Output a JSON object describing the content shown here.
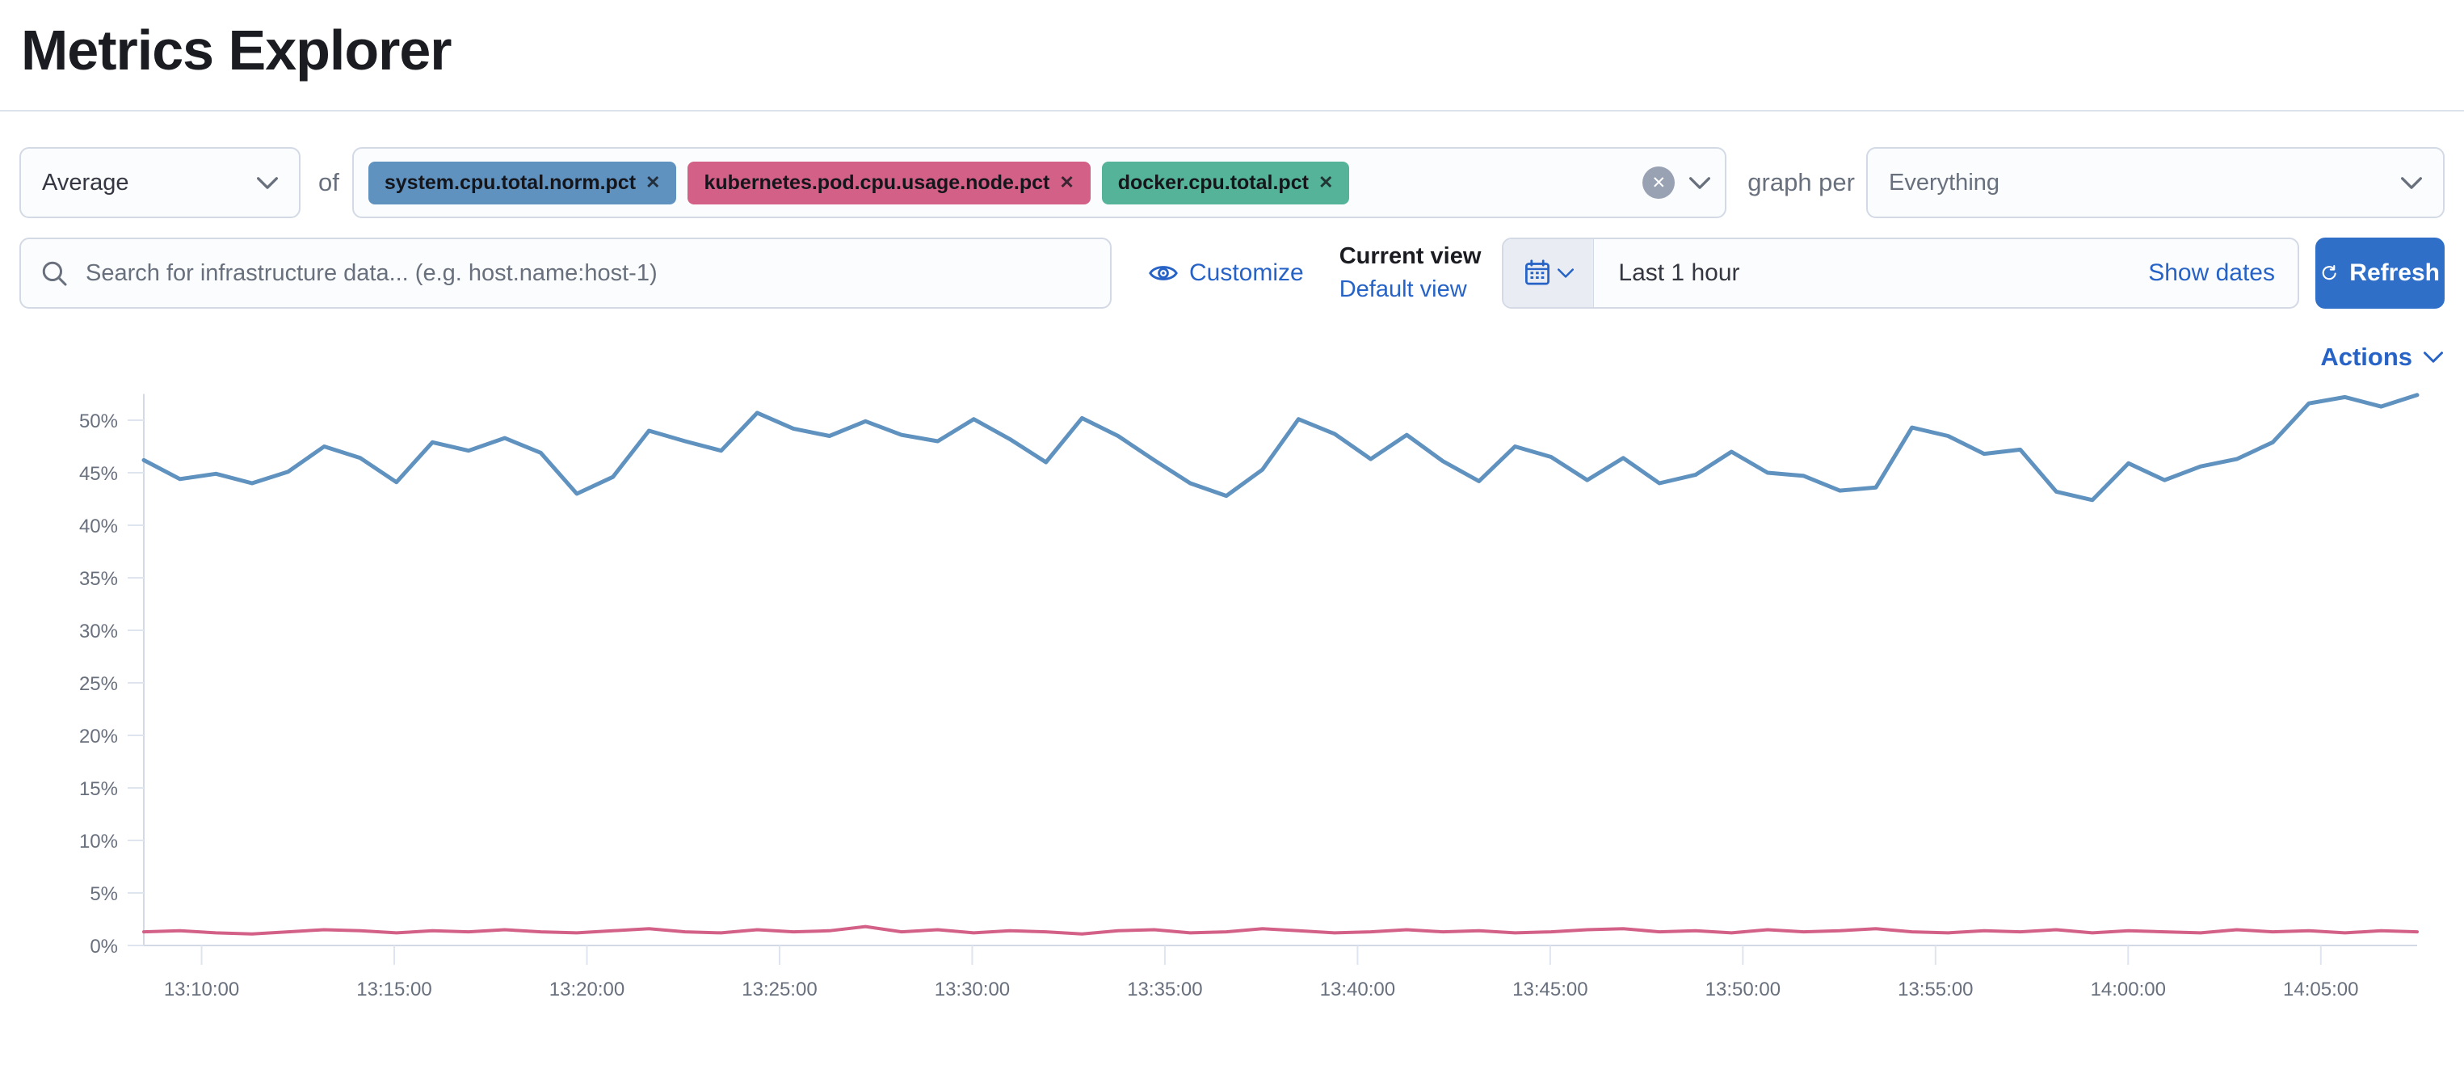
{
  "page": {
    "title": "Metrics Explorer"
  },
  "toolbar": {
    "aggregation": {
      "value": "Average"
    },
    "of_label": "of",
    "metrics": [
      {
        "label": "system.cpu.total.norm.pct",
        "color": "#6092C0"
      },
      {
        "label": "kubernetes.pod.cpu.usage.node.pct",
        "color": "#D36086"
      },
      {
        "label": "docker.cpu.total.pct",
        "color": "#54B399"
      }
    ],
    "clear_icon": "✕",
    "graph_per_label": "graph per",
    "group_by": {
      "value": "Everything"
    }
  },
  "search": {
    "placeholder": "Search for infrastructure data... (e.g. host.name:host-1)"
  },
  "view_controls": {
    "customize_label": "Customize",
    "current_view_label": "Current view",
    "view_name": "Default view"
  },
  "time_picker": {
    "range_label": "Last 1 hour",
    "show_dates_label": "Show dates",
    "refresh_label": "Refresh"
  },
  "actions_label": "Actions",
  "ui_colors": {
    "link_blue": "#2763c6",
    "primary_button_blue": "#306fc8",
    "border_grey": "#d3dae6",
    "muted_text_grey": "#69707d"
  },
  "chart_data": {
    "type": "line",
    "title": "",
    "xlabel": "",
    "ylabel": "",
    "grid": "off",
    "legend": "none",
    "ylim": [
      0,
      52.5
    ],
    "y_ticks": [
      0,
      5,
      10,
      15,
      20,
      25,
      30,
      35,
      40,
      45,
      50
    ],
    "y_tick_suffix": "%",
    "x_domain_minutes": [
      788.5,
      847.5
    ],
    "x_ticks": [
      {
        "minute": 790,
        "label": "13:10:00"
      },
      {
        "minute": 795,
        "label": "13:15:00"
      },
      {
        "minute": 800,
        "label": "13:20:00"
      },
      {
        "minute": 805,
        "label": "13:25:00"
      },
      {
        "minute": 810,
        "label": "13:30:00"
      },
      {
        "minute": 815,
        "label": "13:35:00"
      },
      {
        "minute": 820,
        "label": "13:40:00"
      },
      {
        "minute": 825,
        "label": "13:45:00"
      },
      {
        "minute": 830,
        "label": "13:50:00"
      },
      {
        "minute": 835,
        "label": "13:55:00"
      },
      {
        "minute": 840,
        "label": "14:00:00"
      },
      {
        "minute": 845,
        "label": "14:05:00"
      }
    ],
    "series": [
      {
        "name": "system.cpu.total.norm.pct",
        "color": "#6092C0",
        "values": [
          46.2,
          44.4,
          44.9,
          44.0,
          45.1,
          47.5,
          46.4,
          44.1,
          47.9,
          47.1,
          48.3,
          46.9,
          43.0,
          44.6,
          49.0,
          48.0,
          47.1,
          50.7,
          49.2,
          48.5,
          49.9,
          48.6,
          48.0,
          50.1,
          48.2,
          46.0,
          50.2,
          48.5,
          46.2,
          44.0,
          42.8,
          45.3,
          50.1,
          48.7,
          46.3,
          48.6,
          46.1,
          44.2,
          47.5,
          46.5,
          44.3,
          46.4,
          44.0,
          44.8,
          47.0,
          45.0,
          44.7,
          43.3,
          43.6,
          49.3,
          48.5,
          46.8,
          47.2,
          43.2,
          42.4,
          45.9,
          44.3,
          45.6,
          46.3,
          47.9,
          51.6,
          52.2,
          51.3,
          52.4
        ]
      },
      {
        "name": "kubernetes.pod.cpu.usage.node.pct",
        "color": "#D36086",
        "values": [
          1.3,
          1.4,
          1.2,
          1.1,
          1.3,
          1.5,
          1.4,
          1.2,
          1.4,
          1.3,
          1.5,
          1.3,
          1.2,
          1.4,
          1.6,
          1.3,
          1.2,
          1.5,
          1.3,
          1.4,
          1.8,
          1.3,
          1.5,
          1.2,
          1.4,
          1.3,
          1.1,
          1.4,
          1.5,
          1.2,
          1.3,
          1.6,
          1.4,
          1.2,
          1.3,
          1.5,
          1.3,
          1.4,
          1.2,
          1.3,
          1.5,
          1.6,
          1.3,
          1.4,
          1.2,
          1.5,
          1.3,
          1.4,
          1.6,
          1.3,
          1.2,
          1.4,
          1.3,
          1.5,
          1.2,
          1.4,
          1.3,
          1.2,
          1.5,
          1.3,
          1.4,
          1.2,
          1.4,
          1.3
        ]
      }
    ]
  }
}
